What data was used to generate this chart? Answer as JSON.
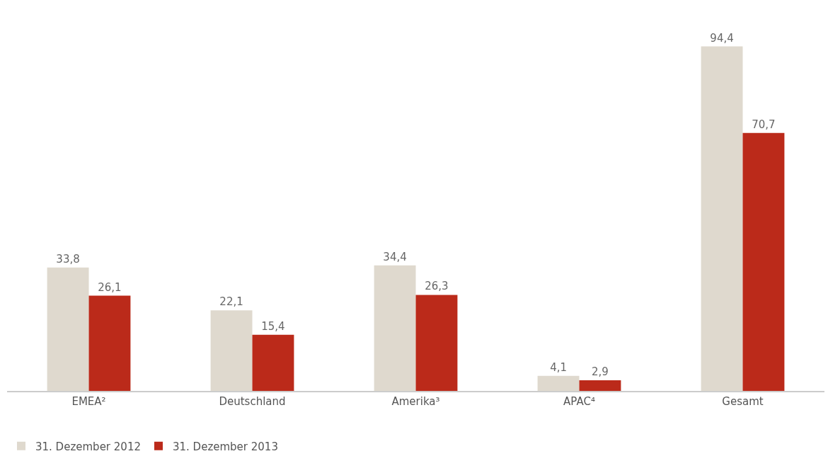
{
  "chart_data": {
    "type": "bar",
    "categories": [
      "EMEA²",
      "Deutschland",
      "Amerika³",
      "APAC⁴",
      "Gesamt"
    ],
    "series": [
      {
        "name": "31. Dezember 2012",
        "color": "#dfd9ce",
        "values": [
          33.8,
          22.1,
          34.4,
          4.1,
          94.4
        ],
        "value_labels": [
          "33,8",
          "22,1",
          "34,4",
          "4,1",
          "94,4"
        ]
      },
      {
        "name": "31. Dezember 2013",
        "color": "#bb2a1a",
        "values": [
          26.1,
          15.4,
          26.3,
          2.9,
          70.7
        ],
        "value_labels": [
          "26,1",
          "15,4",
          "26,3",
          "2,9",
          "70,7"
        ]
      }
    ],
    "legend": "bottom left"
  }
}
